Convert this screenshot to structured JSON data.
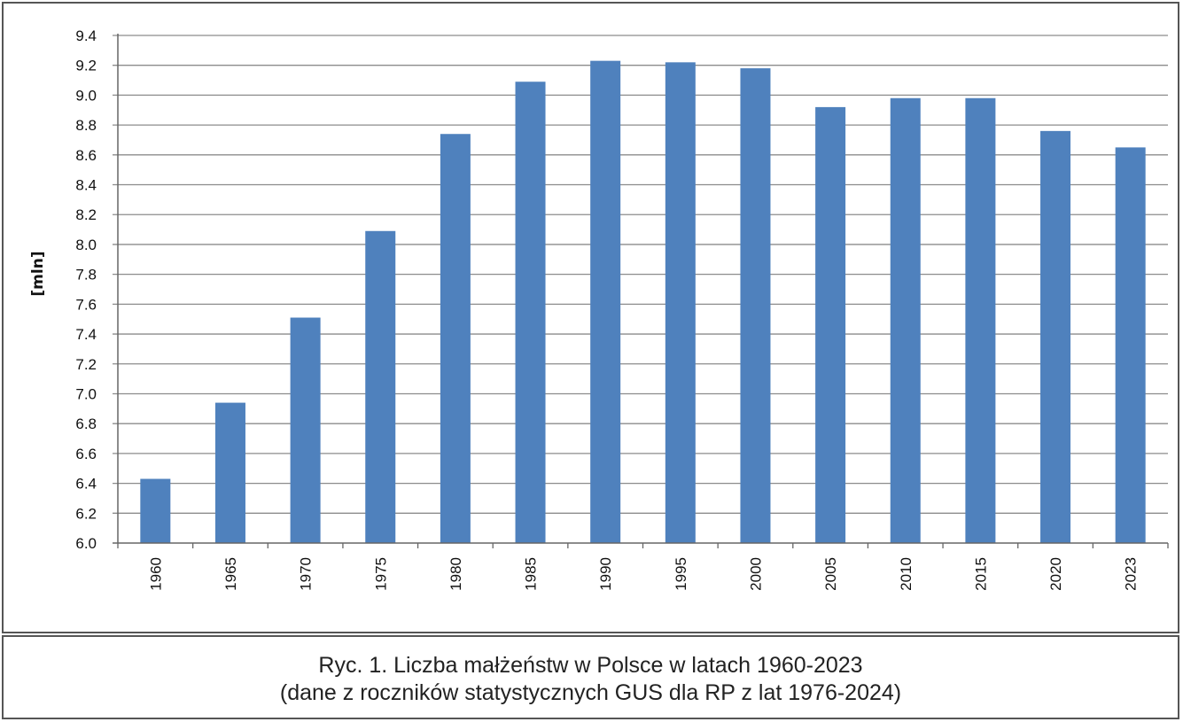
{
  "chart_data": {
    "type": "bar",
    "categories": [
      "1960",
      "1965",
      "1970",
      "1975",
      "1980",
      "1985",
      "1990",
      "1995",
      "2000",
      "2005",
      "2010",
      "2015",
      "2020",
      "2023"
    ],
    "values": [
      6.43,
      6.94,
      7.51,
      8.09,
      8.74,
      9.09,
      9.23,
      9.22,
      9.18,
      8.92,
      8.98,
      8.98,
      8.76,
      8.65
    ],
    "ylabel": "[mln]",
    "xlabel": "",
    "ylim": [
      6.0,
      9.4
    ],
    "yticks": [
      "6.0",
      "6.2",
      "6.4",
      "6.6",
      "6.8",
      "7.0",
      "7.2",
      "7.4",
      "7.6",
      "7.8",
      "8.0",
      "8.2",
      "8.4",
      "8.6",
      "8.8",
      "9.0",
      "9.2",
      "9.4"
    ],
    "grid": true,
    "legend": "none",
    "bar_color": "#4f81bd",
    "grid_color": "#8c8c8c"
  },
  "caption": {
    "line1": "Ryc. 1. Liczba małżeństw w Polsce w latach 1960-2023",
    "line2": "(dane z roczników statystycznych GUS dla RP z lat 1976-2024)"
  }
}
